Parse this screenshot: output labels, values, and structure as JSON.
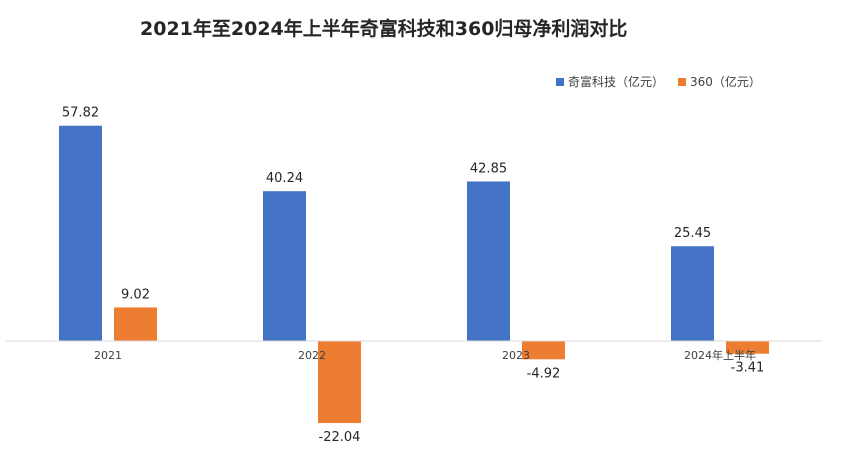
{
  "colors": {
    "series1": "#4472C4",
    "series2": "#ED7D31",
    "axis": "#D9D9D9"
  },
  "chart_data": {
    "type": "bar",
    "title": "2021年至2024年上半年奇富科技和360归母净利润对比",
    "categories": [
      "2021",
      "2022",
      "2023",
      "2024年上半年"
    ],
    "series": [
      {
        "name": "奇富科技（亿元）",
        "values": [
          57.82,
          40.24,
          42.85,
          25.45
        ]
      },
      {
        "name": "360（亿元）",
        "values": [
          9.02,
          -22.04,
          -4.92,
          -3.41
        ]
      }
    ],
    "ylim": [
      -24,
      60
    ],
    "grid": false,
    "legend": "top-right"
  }
}
